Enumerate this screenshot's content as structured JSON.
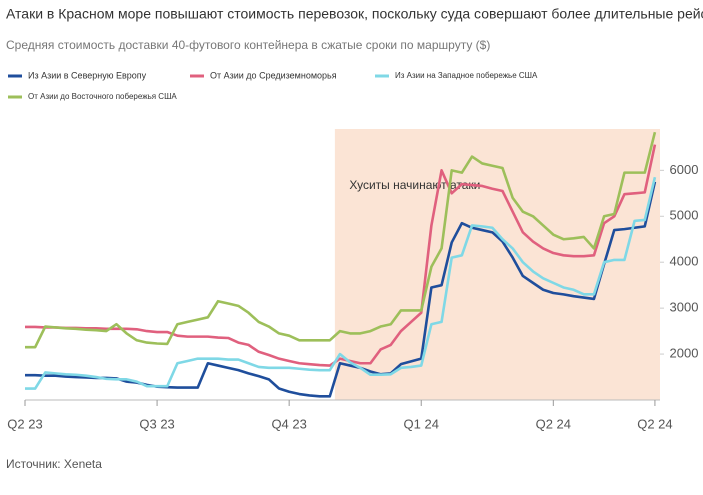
{
  "chart_data": {
    "type": "line",
    "title": "Атаки в Красном море повышают стоимость перевозок, поскольку суда совершают более длительные рейсы",
    "subtitle": "Средняя стоимость доставки 40-футового контейнера в сжатые сроки по маршруту ($)",
    "source": "Источник: Xeneta",
    "annotation": {
      "text": "Хуситы начинают атаки",
      "x": 30.5
    },
    "x": [
      0,
      1,
      2,
      3,
      4,
      5,
      6,
      7,
      8,
      9,
      10,
      11,
      12,
      13,
      14,
      15,
      16,
      17,
      18,
      19,
      20,
      21,
      22,
      23,
      24,
      25,
      26,
      27,
      28,
      29,
      30,
      31,
      32,
      33,
      34,
      35,
      36,
      37,
      38,
      39,
      40,
      41,
      42,
      43,
      44,
      45,
      46,
      47,
      48,
      49,
      50,
      51,
      52,
      53,
      54,
      55,
      56,
      57,
      58,
      59,
      60,
      61,
      62
    ],
    "xlim": [
      0,
      62.5
    ],
    "xticks": [
      {
        "value": 0,
        "label": "Q2 23"
      },
      {
        "value": 13,
        "label": "Q3 23"
      },
      {
        "value": 26,
        "label": "Q4 23"
      },
      {
        "value": 39,
        "label": "Q1 24"
      },
      {
        "value": 52,
        "label": "Q2 24"
      },
      {
        "value": 62,
        "label": "Q2 24"
      }
    ],
    "ylim": [
      1000,
      6900
    ],
    "yticks": [
      2000,
      3000,
      4000,
      5000,
      6000
    ],
    "series": [
      {
        "name": "Из Азии в Северную Европу",
        "color": "#1f4e9c",
        "values": [
          1540,
          1540,
          1530,
          1530,
          1510,
          1500,
          1490,
          1480,
          1480,
          1470,
          1400,
          1380,
          1330,
          1290,
          1280,
          1270,
          1270,
          1270,
          1800,
          1750,
          1700,
          1650,
          1580,
          1520,
          1450,
          1250,
          1180,
          1130,
          1100,
          1080,
          1080,
          1800,
          1750,
          1700,
          1620,
          1560,
          1580,
          1780,
          1840,
          1900,
          3450,
          3500,
          4430,
          4850,
          4750,
          4700,
          4650,
          4450,
          4100,
          3700,
          3550,
          3400,
          3330,
          3300,
          3260,
          3230,
          3200,
          3960,
          4700,
          4720,
          4750,
          4780,
          5750
        ]
      },
      {
        "name": "От Азии до Средиземноморья",
        "color": "#e0607e",
        "values": [
          2590,
          2590,
          2580,
          2580,
          2570,
          2570,
          2560,
          2560,
          2550,
          2550,
          2550,
          2540,
          2500,
          2480,
          2480,
          2400,
          2380,
          2380,
          2380,
          2360,
          2350,
          2250,
          2200,
          2050,
          1980,
          1900,
          1850,
          1800,
          1780,
          1760,
          1750,
          1900,
          1850,
          1800,
          1800,
          2100,
          2200,
          2500,
          2700,
          2900,
          4800,
          6000,
          5500,
          5700,
          5680,
          5660,
          5600,
          5550,
          5100,
          4650,
          4450,
          4300,
          4200,
          4150,
          4130,
          4130,
          4150,
          4850,
          5000,
          5480,
          5500,
          5520,
          6560
        ]
      },
      {
        "name": "Из Азии на Западное побережье США",
        "color": "#7fd8e6",
        "values": [
          1250,
          1250,
          1600,
          1580,
          1560,
          1550,
          1530,
          1500,
          1460,
          1450,
          1450,
          1400,
          1300,
          1300,
          1300,
          1800,
          1850,
          1900,
          1900,
          1900,
          1880,
          1880,
          1800,
          1720,
          1700,
          1700,
          1700,
          1680,
          1660,
          1650,
          1650,
          2000,
          1820,
          1700,
          1550,
          1550,
          1560,
          1700,
          1720,
          1750,
          2650,
          2700,
          4100,
          4150,
          4800,
          4780,
          4750,
          4500,
          4300,
          4000,
          3800,
          3650,
          3550,
          3450,
          3400,
          3300,
          3300,
          4000,
          4050,
          4050,
          4900,
          4920,
          5850
        ]
      },
      {
        "name": "От Азии до Восточного побережья США",
        "color": "#9dbf5a",
        "values": [
          2150,
          2150,
          2600,
          2580,
          2560,
          2550,
          2530,
          2520,
          2500,
          2650,
          2450,
          2300,
          2250,
          2230,
          2220,
          2650,
          2700,
          2750,
          2800,
          3150,
          3100,
          3050,
          2900,
          2700,
          2600,
          2450,
          2400,
          2300,
          2300,
          2300,
          2300,
          2500,
          2450,
          2450,
          2500,
          2600,
          2650,
          2950,
          2950,
          2950,
          3900,
          4300,
          6000,
          5950,
          6300,
          6150,
          6100,
          6050,
          5400,
          5100,
          5000,
          4800,
          4600,
          4500,
          4520,
          4550,
          4300,
          5000,
          5050,
          5950,
          5950,
          5950,
          6830
        ]
      }
    ]
  }
}
